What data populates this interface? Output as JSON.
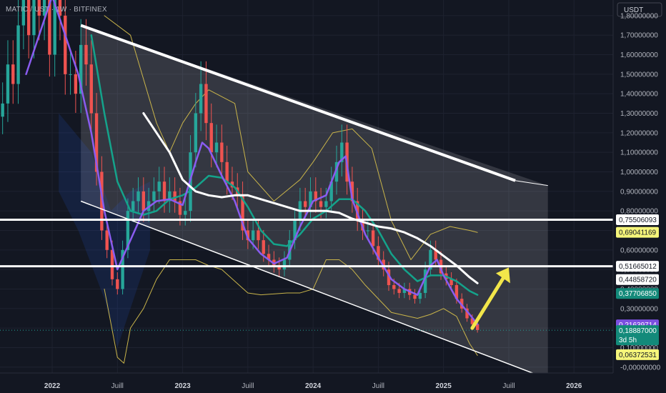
{
  "header": {
    "symbol_line": "MATIC / UST · 1W · BITFINEX"
  },
  "colors": {
    "background": "#131722",
    "grid": "#1e2230",
    "channel": "#ffffff",
    "ma_fast": "#8a5cf0",
    "ma_mid": "#14a38b",
    "ma_slow": "#ffffff",
    "bollinger": "#c9b44a",
    "candle_up": "#26a69a",
    "candle_down": "#ef5350",
    "arrow": "#f2e64a"
  },
  "chart_data": {
    "type": "candlestick",
    "currency_label": "USDT",
    "y_axis": {
      "range": [
        -0.03,
        1.88
      ],
      "ticks": [
        "1,80000000",
        "1,70000000",
        "1,60000000",
        "1,50000000",
        "1,40000000",
        "1,30000000",
        "1,20000000",
        "1,10000000",
        "1,00000000",
        "0,90000000",
        "0,80000000",
        "0,70000000",
        "0,60000000",
        "0,50000000",
        "0,40000000",
        "0,30000000",
        "0,20000000",
        "0,10000000",
        "-0,00000000"
      ],
      "tick_values": [
        1.8,
        1.7,
        1.6,
        1.5,
        1.4,
        1.3,
        1.2,
        1.1,
        1.0,
        0.9,
        0.8,
        0.7,
        0.6,
        0.5,
        0.4,
        0.3,
        0.2,
        0.1,
        0.0
      ]
    },
    "x_axis": {
      "labels": [
        "2022",
        "Juill",
        "2023",
        "Juill",
        "2024",
        "Juill",
        "2025",
        "Juill",
        "2026"
      ],
      "label_values": [
        2022.0,
        2022.5,
        2023.0,
        2023.5,
        2024.0,
        2024.5,
        2025.0,
        2025.5,
        2026.0
      ],
      "year_labels": [
        "2022",
        "2023",
        "2024",
        "2025",
        "2026"
      ],
      "range": [
        2021.6,
        2026.3
      ]
    },
    "horizontal_levels": [
      0.75506093,
      0.51665012
    ],
    "channel": {
      "upper": [
        [
          2022.22,
          1.75
        ],
        [
          2025.55,
          0.955
        ]
      ],
      "lower": [
        [
          2022.22,
          0.85
        ],
        [
          2025.8,
          -0.06
        ]
      ],
      "upper_projection": [
        [
          2025.55,
          0.955
        ],
        [
          2025.8,
          0.93
        ]
      ]
    },
    "price_tags": [
      {
        "text": "0,75506093",
        "value": 0.75506093,
        "style": "white"
      },
      {
        "text": "0,69041169",
        "value": 0.69041169,
        "style": "yellow"
      },
      {
        "text": "0,51665012",
        "value": 0.51665012,
        "style": "white"
      },
      {
        "text": "0,44858720",
        "value": 0.4485872,
        "style": "white"
      },
      {
        "text": "0,37706850",
        "value": 0.3770685,
        "style": "teal"
      },
      {
        "text": "0,21639714",
        "value": 0.21639714,
        "style": "purple"
      },
      {
        "text": "0,18887000",
        "sub": "3d 5h",
        "value": 0.18887,
        "style": "teal"
      },
      {
        "text": "0,06372531",
        "value": 0.06372531,
        "style": "yellow"
      }
    ],
    "closes": [
      [
        2021.62,
        1.35
      ],
      [
        2021.66,
        1.55
      ],
      [
        2021.7,
        1.45
      ],
      [
        2021.74,
        1.75
      ],
      [
        2021.78,
        1.9
      ],
      [
        2021.82,
        1.7
      ],
      [
        2021.86,
        1.95
      ],
      [
        2021.9,
        1.8
      ],
      [
        2021.94,
        2.0
      ],
      [
        2021.98,
        1.6
      ],
      [
        2022.02,
        1.9
      ],
      [
        2022.06,
        1.8
      ],
      [
        2022.1,
        1.5
      ],
      [
        2022.14,
        1.5
      ],
      [
        2022.18,
        1.4
      ],
      [
        2022.22,
        1.65
      ],
      [
        2022.26,
        1.55
      ],
      [
        2022.3,
        1.3
      ],
      [
        2022.34,
        1.0
      ],
      [
        2022.38,
        0.7
      ],
      [
        2022.42,
        0.6
      ],
      [
        2022.46,
        0.45
      ],
      [
        2022.5,
        0.4
      ],
      [
        2022.54,
        0.6
      ],
      [
        2022.58,
        0.8
      ],
      [
        2022.62,
        0.85
      ],
      [
        2022.66,
        0.9
      ],
      [
        2022.7,
        0.8
      ],
      [
        2022.74,
        0.85
      ],
      [
        2022.78,
        0.9
      ],
      [
        2022.82,
        0.95
      ],
      [
        2022.86,
        0.85
      ],
      [
        2022.9,
        0.9
      ],
      [
        2022.94,
        0.85
      ],
      [
        2022.98,
        0.78
      ],
      [
        2023.02,
        0.8
      ],
      [
        2023.06,
        1.1
      ],
      [
        2023.1,
        1.3
      ],
      [
        2023.14,
        1.45
      ],
      [
        2023.18,
        1.25
      ],
      [
        2023.22,
        1.1
      ],
      [
        2023.26,
        1.15
      ],
      [
        2023.3,
        1.05
      ],
      [
        2023.34,
        0.95
      ],
      [
        2023.38,
        0.92
      ],
      [
        2023.42,
        0.88
      ],
      [
        2023.46,
        0.7
      ],
      [
        2023.5,
        0.65
      ],
      [
        2023.54,
        0.7
      ],
      [
        2023.58,
        0.65
      ],
      [
        2023.62,
        0.58
      ],
      [
        2023.66,
        0.55
      ],
      [
        2023.7,
        0.52
      ],
      [
        2023.74,
        0.5
      ],
      [
        2023.78,
        0.55
      ],
      [
        2023.82,
        0.65
      ],
      [
        2023.86,
        0.75
      ],
      [
        2023.9,
        0.85
      ],
      [
        2023.94,
        0.82
      ],
      [
        2023.98,
        0.9
      ],
      [
        2024.02,
        0.85
      ],
      [
        2024.06,
        0.82
      ],
      [
        2024.1,
        0.85
      ],
      [
        2024.14,
        0.95
      ],
      [
        2024.18,
        1.05
      ],
      [
        2024.22,
        1.15
      ],
      [
        2024.26,
        0.95
      ],
      [
        2024.3,
        0.85
      ],
      [
        2024.34,
        0.75
      ],
      [
        2024.38,
        0.7
      ],
      [
        2024.42,
        0.7
      ],
      [
        2024.46,
        0.62
      ],
      [
        2024.5,
        0.55
      ],
      [
        2024.54,
        0.5
      ],
      [
        2024.58,
        0.42
      ],
      [
        2024.62,
        0.4
      ],
      [
        2024.66,
        0.38
      ],
      [
        2024.7,
        0.4
      ],
      [
        2024.74,
        0.37
      ],
      [
        2024.78,
        0.35
      ],
      [
        2024.82,
        0.38
      ],
      [
        2024.86,
        0.5
      ],
      [
        2024.9,
        0.6
      ],
      [
        2024.94,
        0.55
      ],
      [
        2024.98,
        0.48
      ],
      [
        2025.02,
        0.45
      ],
      [
        2025.06,
        0.42
      ],
      [
        2025.1,
        0.35
      ],
      [
        2025.14,
        0.3
      ],
      [
        2025.18,
        0.25
      ],
      [
        2025.22,
        0.22
      ],
      [
        2025.26,
        0.19
      ]
    ],
    "ma_slow": [
      [
        2022.7,
        1.3
      ],
      [
        2022.8,
        1.2
      ],
      [
        2022.9,
        1.1
      ],
      [
        2023.0,
        0.96
      ],
      [
        2023.1,
        0.9
      ],
      [
        2023.2,
        0.88
      ],
      [
        2023.3,
        0.87
      ],
      [
        2023.4,
        0.88
      ],
      [
        2023.5,
        0.88
      ],
      [
        2023.6,
        0.86
      ],
      [
        2023.7,
        0.84
      ],
      [
        2023.8,
        0.82
      ],
      [
        2023.9,
        0.8
      ],
      [
        2024.0,
        0.8
      ],
      [
        2024.1,
        0.8
      ],
      [
        2024.2,
        0.79
      ],
      [
        2024.3,
        0.76
      ],
      [
        2024.4,
        0.74
      ],
      [
        2024.5,
        0.72
      ],
      [
        2024.6,
        0.71
      ],
      [
        2024.7,
        0.69
      ],
      [
        2024.8,
        0.66
      ],
      [
        2024.9,
        0.62
      ],
      [
        2025.0,
        0.57
      ],
      [
        2025.1,
        0.52
      ],
      [
        2025.2,
        0.46
      ],
      [
        2025.26,
        0.43
      ]
    ],
    "ma_mid": [
      [
        2022.3,
        1.7
      ],
      [
        2022.4,
        1.3
      ],
      [
        2022.5,
        0.95
      ],
      [
        2022.6,
        0.8
      ],
      [
        2022.7,
        0.78
      ],
      [
        2022.8,
        0.8
      ],
      [
        2022.9,
        0.86
      ],
      [
        2023.0,
        0.88
      ],
      [
        2023.1,
        0.92
      ],
      [
        2023.2,
        0.98
      ],
      [
        2023.3,
        0.97
      ],
      [
        2023.4,
        0.92
      ],
      [
        2023.5,
        0.82
      ],
      [
        2023.6,
        0.7
      ],
      [
        2023.7,
        0.63
      ],
      [
        2023.8,
        0.62
      ],
      [
        2023.9,
        0.68
      ],
      [
        2024.0,
        0.76
      ],
      [
        2024.1,
        0.8
      ],
      [
        2024.2,
        0.86
      ],
      [
        2024.3,
        0.86
      ],
      [
        2024.4,
        0.8
      ],
      [
        2024.5,
        0.7
      ],
      [
        2024.6,
        0.58
      ],
      [
        2024.7,
        0.5
      ],
      [
        2024.8,
        0.44
      ],
      [
        2024.9,
        0.47
      ],
      [
        2025.0,
        0.47
      ],
      [
        2025.1,
        0.44
      ],
      [
        2025.2,
        0.39
      ],
      [
        2025.26,
        0.37
      ]
    ],
    "ma_fast": [
      [
        2021.8,
        1.5
      ],
      [
        2021.9,
        1.7
      ],
      [
        2022.0,
        1.9
      ],
      [
        2022.1,
        1.7
      ],
      [
        2022.2,
        1.5
      ],
      [
        2022.3,
        1.2
      ],
      [
        2022.4,
        0.8
      ],
      [
        2022.5,
        0.5
      ],
      [
        2022.6,
        0.65
      ],
      [
        2022.7,
        0.8
      ],
      [
        2022.8,
        0.85
      ],
      [
        2022.9,
        0.86
      ],
      [
        2023.0,
        0.83
      ],
      [
        2023.1,
        1.05
      ],
      [
        2023.15,
        1.15
      ],
      [
        2023.2,
        1.12
      ],
      [
        2023.3,
        0.98
      ],
      [
        2023.4,
        0.85
      ],
      [
        2023.5,
        0.66
      ],
      [
        2023.6,
        0.58
      ],
      [
        2023.7,
        0.53
      ],
      [
        2023.8,
        0.56
      ],
      [
        2023.9,
        0.72
      ],
      [
        2024.0,
        0.85
      ],
      [
        2024.1,
        0.88
      ],
      [
        2024.2,
        1.05
      ],
      [
        2024.25,
        1.08
      ],
      [
        2024.3,
        0.86
      ],
      [
        2024.4,
        0.68
      ],
      [
        2024.5,
        0.56
      ],
      [
        2024.6,
        0.45
      ],
      [
        2024.7,
        0.4
      ],
      [
        2024.8,
        0.37
      ],
      [
        2024.9,
        0.52
      ],
      [
        2024.95,
        0.55
      ],
      [
        2025.0,
        0.47
      ],
      [
        2025.1,
        0.35
      ],
      [
        2025.2,
        0.27
      ],
      [
        2025.26,
        0.22
      ]
    ],
    "bb_upper": [
      [
        2022.4,
        1.8
      ],
      [
        2022.6,
        1.7
      ],
      [
        2022.8,
        1.25
      ],
      [
        2022.9,
        1.1
      ],
      [
        2023.0,
        1.25
      ],
      [
        2023.1,
        1.35
      ],
      [
        2023.2,
        1.42
      ],
      [
        2023.4,
        1.35
      ],
      [
        2023.5,
        1.0
      ],
      [
        2023.7,
        0.85
      ],
      [
        2023.9,
        0.96
      ],
      [
        2024.0,
        1.05
      ],
      [
        2024.15,
        1.2
      ],
      [
        2024.3,
        1.22
      ],
      [
        2024.45,
        1.12
      ],
      [
        2024.6,
        0.75
      ],
      [
        2024.75,
        0.55
      ],
      [
        2024.9,
        0.68
      ],
      [
        2025.05,
        0.72
      ],
      [
        2025.2,
        0.7
      ],
      [
        2025.26,
        0.69
      ]
    ],
    "bb_lower": [
      [
        2022.4,
        0.4
      ],
      [
        2022.5,
        0.05
      ],
      [
        2022.55,
        0.02
      ],
      [
        2022.6,
        0.2
      ],
      [
        2022.7,
        0.3
      ],
      [
        2022.8,
        0.45
      ],
      [
        2022.9,
        0.55
      ],
      [
        2023.0,
        0.55
      ],
      [
        2023.1,
        0.55
      ],
      [
        2023.2,
        0.52
      ],
      [
        2023.3,
        0.5
      ],
      [
        2023.5,
        0.38
      ],
      [
        2023.6,
        0.37
      ],
      [
        2023.8,
        0.38
      ],
      [
        2023.9,
        0.38
      ],
      [
        2024.0,
        0.4
      ],
      [
        2024.1,
        0.55
      ],
      [
        2024.2,
        0.55
      ],
      [
        2024.3,
        0.5
      ],
      [
        2024.4,
        0.42
      ],
      [
        2024.6,
        0.28
      ],
      [
        2024.8,
        0.25
      ],
      [
        2024.9,
        0.27
      ],
      [
        2025.0,
        0.3
      ],
      [
        2025.1,
        0.26
      ],
      [
        2025.2,
        0.12
      ],
      [
        2025.26,
        0.06
      ]
    ]
  }
}
